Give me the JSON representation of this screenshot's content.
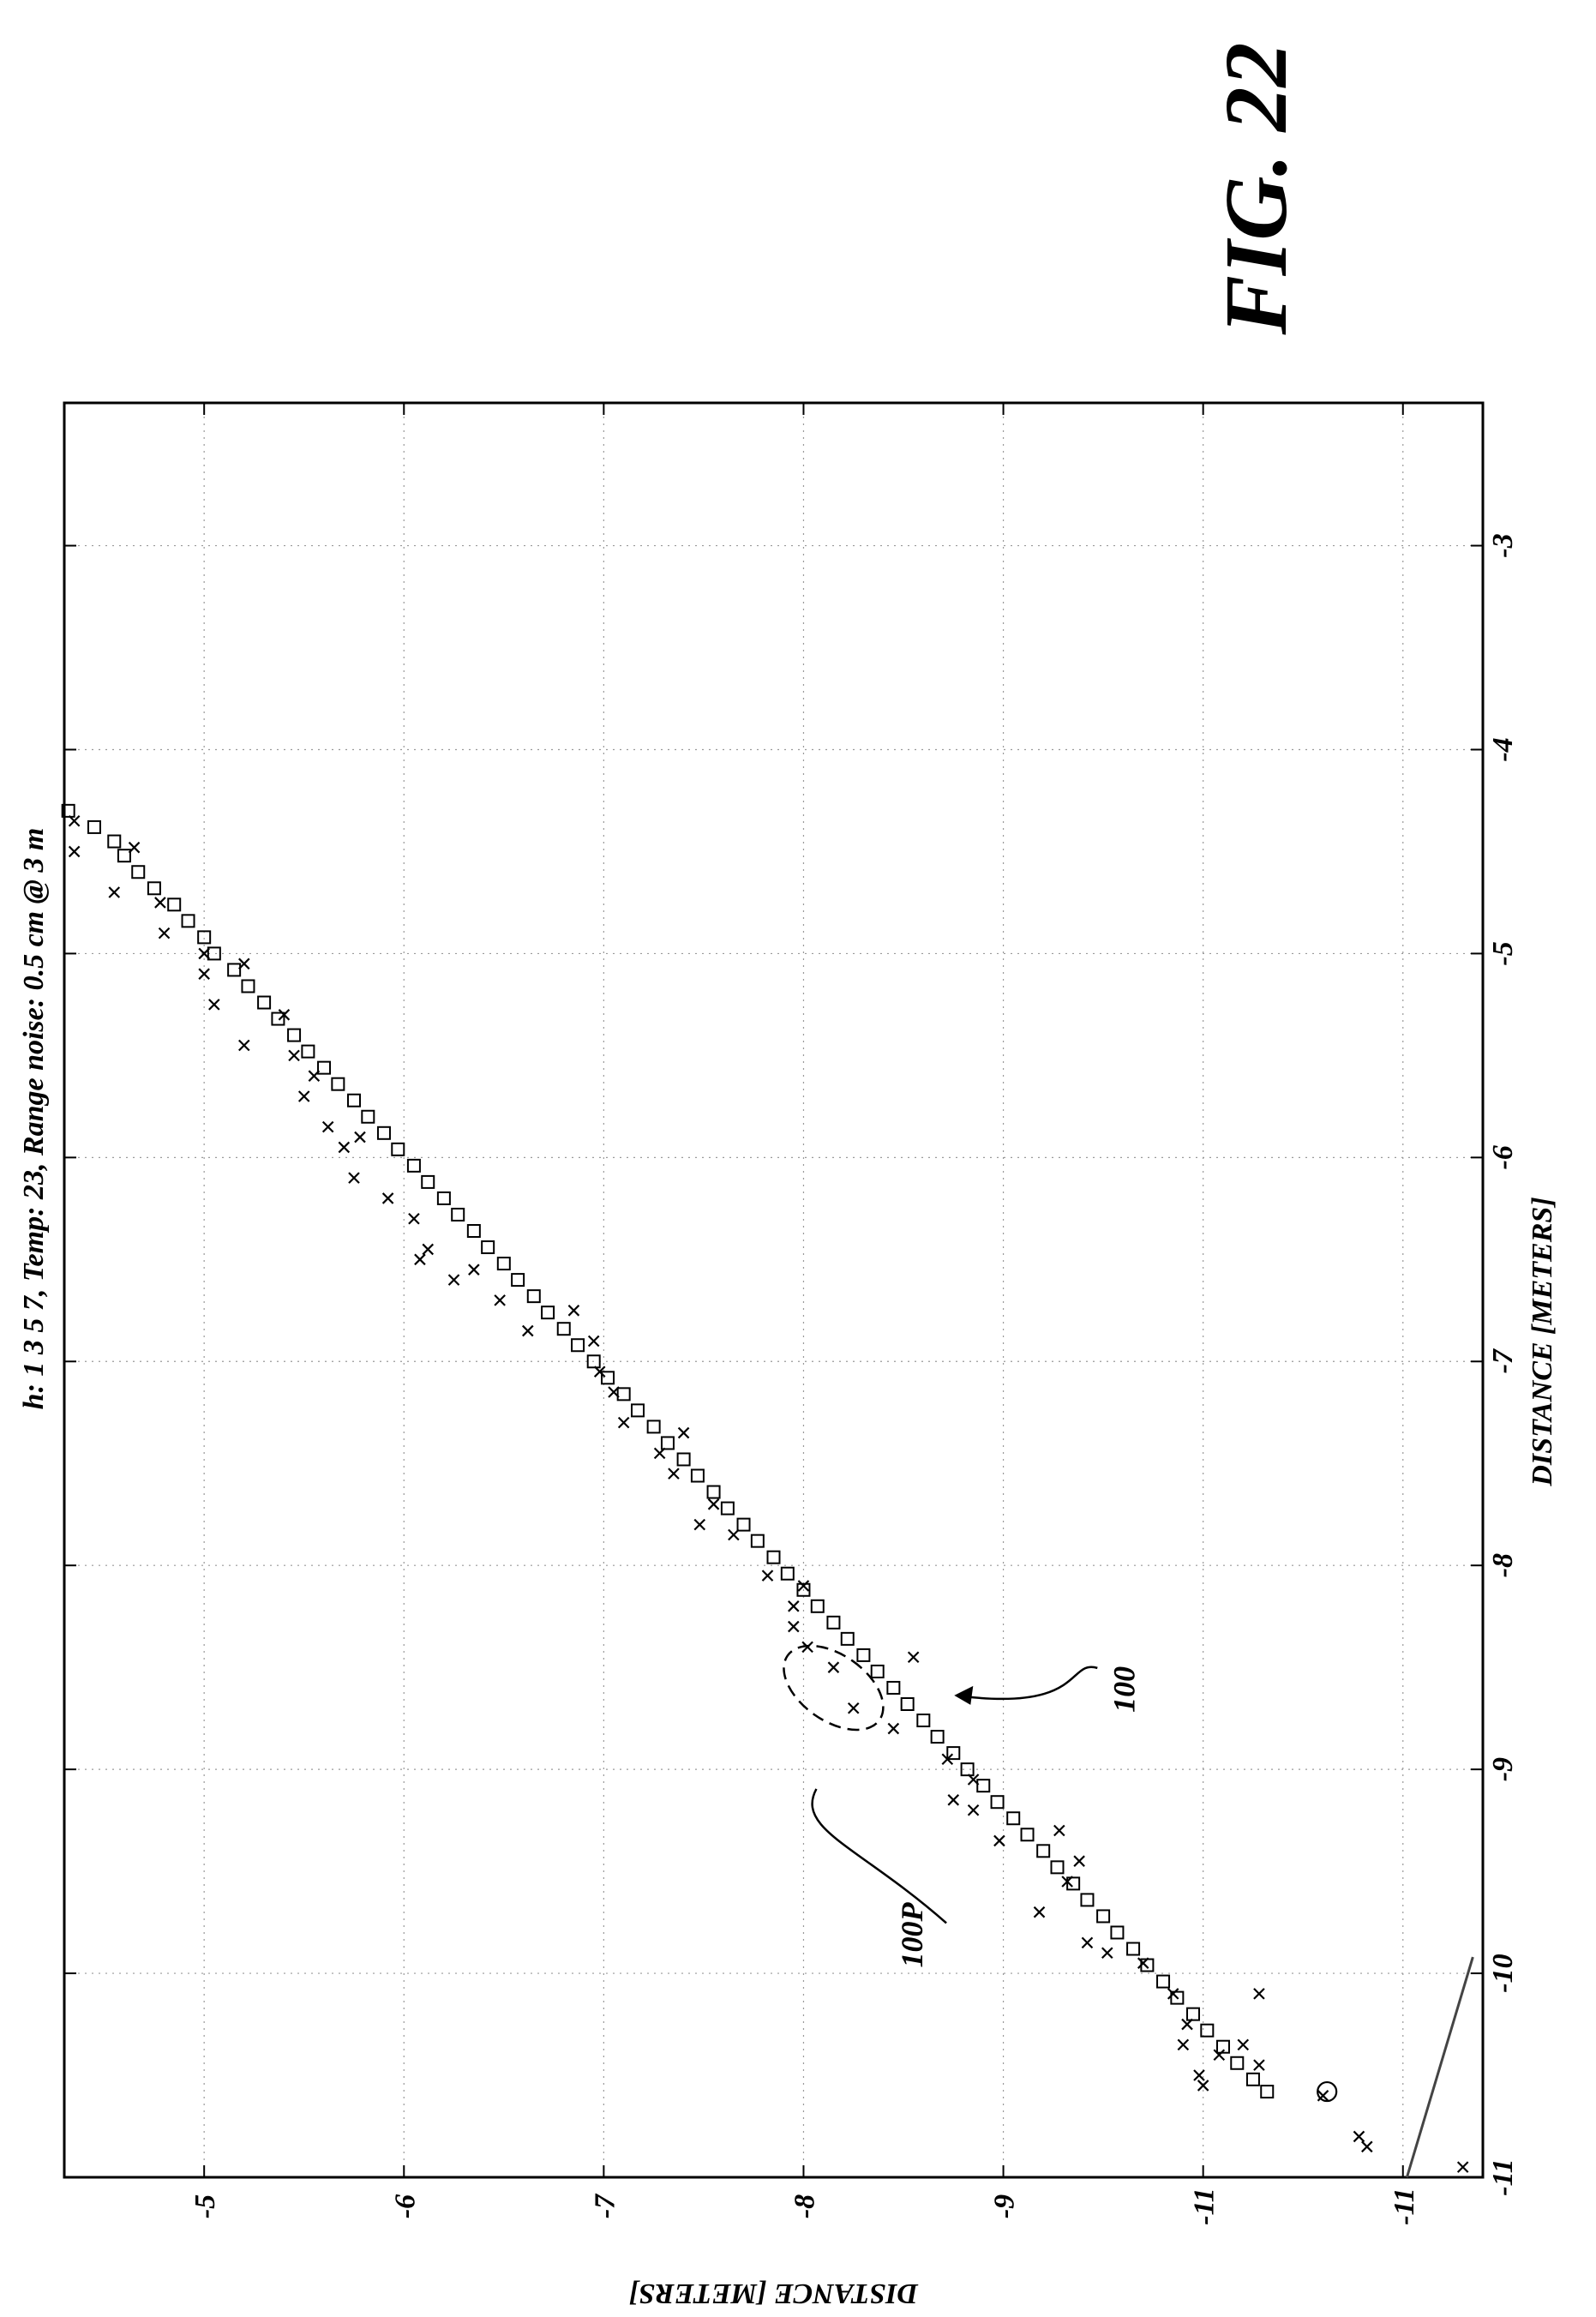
{
  "figure_label": "FIG. 22",
  "chart_data": {
    "type": "scatter",
    "title": "h: 1 3 5 7, Temp: 23, Range noise: 0.5 cm @ 3 m",
    "xlabel": "DISTANCE [METERS]",
    "ylabel": "DISTANCE [METERS]",
    "xlim": [
      -11,
      -2.3
    ],
    "ylim": [
      -4.3,
      -11.4
    ],
    "x_ticks": [
      "-11",
      "-10",
      "-9",
      "-8",
      "-7",
      "-6",
      "-5",
      "-4",
      "-3"
    ],
    "y_ticks": [
      "-5",
      "-6",
      "-7",
      "-8",
      "-9",
      "-11",
      "-11"
    ],
    "grid": true,
    "annotations": [
      {
        "label": "100",
        "target": [
          -8.65,
          -8.72
        ]
      },
      {
        "label": "100P",
        "target": [
          -8.85,
          -8.2
        ]
      }
    ],
    "ellipse": {
      "center": [
        -8.6,
        -8.15
      ],
      "span_x": 0.55,
      "span_y": 0.33
    },
    "circle_marker": {
      "x": -10.58,
      "y": -10.62
    },
    "solid_line": {
      "points": [
        [
          -11.0,
          -11.02
        ],
        [
          -9.92,
          -11.35
        ]
      ]
    },
    "series": [
      {
        "marker": "square",
        "points": [
          [
            -4.3,
            -4.32
          ],
          [
            -4.38,
            -4.45
          ],
          [
            -4.45,
            -4.55
          ],
          [
            -4.52,
            -4.6
          ],
          [
            -4.6,
            -4.67
          ],
          [
            -4.68,
            -4.75
          ],
          [
            -4.76,
            -4.85
          ],
          [
            -4.84,
            -4.92
          ],
          [
            -4.92,
            -5.0
          ],
          [
            -5.0,
            -5.05
          ],
          [
            -5.08,
            -5.15
          ],
          [
            -5.16,
            -5.22
          ],
          [
            -5.24,
            -5.3
          ],
          [
            -5.32,
            -5.37
          ],
          [
            -5.4,
            -5.45
          ],
          [
            -5.48,
            -5.52
          ],
          [
            -5.56,
            -5.6
          ],
          [
            -5.64,
            -5.67
          ],
          [
            -5.72,
            -5.75
          ],
          [
            -5.8,
            -5.82
          ],
          [
            -5.88,
            -5.9
          ],
          [
            -5.96,
            -5.97
          ],
          [
            -6.04,
            -6.05
          ],
          [
            -6.12,
            -6.12
          ],
          [
            -6.2,
            -6.2
          ],
          [
            -6.28,
            -6.27
          ],
          [
            -6.36,
            -6.35
          ],
          [
            -6.44,
            -6.42
          ],
          [
            -6.52,
            -6.5
          ],
          [
            -6.6,
            -6.57
          ],
          [
            -6.68,
            -6.65
          ],
          [
            -6.76,
            -6.72
          ],
          [
            -6.84,
            -6.8
          ],
          [
            -6.92,
            -6.87
          ],
          [
            -7.0,
            -6.95
          ],
          [
            -7.08,
            -7.02
          ],
          [
            -7.16,
            -7.1
          ],
          [
            -7.24,
            -7.17
          ],
          [
            -7.32,
            -7.25
          ],
          [
            -7.4,
            -7.32
          ],
          [
            -7.48,
            -7.4
          ],
          [
            -7.56,
            -7.47
          ],
          [
            -7.64,
            -7.55
          ],
          [
            -7.72,
            -7.62
          ],
          [
            -7.8,
            -7.7
          ],
          [
            -7.88,
            -7.77
          ],
          [
            -7.96,
            -7.85
          ],
          [
            -8.04,
            -7.92
          ],
          [
            -8.12,
            -8.0
          ],
          [
            -8.2,
            -8.07
          ],
          [
            -8.28,
            -8.15
          ],
          [
            -8.36,
            -8.22
          ],
          [
            -8.44,
            -8.3
          ],
          [
            -8.52,
            -8.37
          ],
          [
            -8.6,
            -8.45
          ],
          [
            -8.68,
            -8.52
          ],
          [
            -8.76,
            -8.6
          ],
          [
            -8.84,
            -8.67
          ],
          [
            -8.92,
            -8.75
          ],
          [
            -9.0,
            -8.82
          ],
          [
            -9.08,
            -8.9
          ],
          [
            -9.16,
            -8.97
          ],
          [
            -9.24,
            -9.05
          ],
          [
            -9.32,
            -9.12
          ],
          [
            -9.4,
            -9.2
          ],
          [
            -9.48,
            -9.27
          ],
          [
            -9.56,
            -9.35
          ],
          [
            -9.64,
            -9.42
          ],
          [
            -9.72,
            -9.5
          ],
          [
            -9.8,
            -9.57
          ],
          [
            -9.88,
            -9.65
          ],
          [
            -9.96,
            -9.72
          ],
          [
            -10.04,
            -9.8
          ],
          [
            -10.12,
            -9.87
          ],
          [
            -10.2,
            -9.95
          ],
          [
            -10.28,
            -10.02
          ],
          [
            -10.36,
            -10.1
          ],
          [
            -10.44,
            -10.17
          ],
          [
            -10.52,
            -10.25
          ],
          [
            -10.58,
            -10.32
          ]
        ]
      },
      {
        "marker": "x",
        "points": [
          [
            -4.35,
            -4.35
          ],
          [
            -4.5,
            -4.35
          ],
          [
            -4.48,
            -4.65
          ],
          [
            -4.7,
            -4.55
          ],
          [
            -4.75,
            -4.78
          ],
          [
            -4.9,
            -4.8
          ],
          [
            -5.0,
            -5.0
          ],
          [
            -5.05,
            -5.2
          ],
          [
            -5.1,
            -5.0
          ],
          [
            -5.25,
            -5.05
          ],
          [
            -5.3,
            -5.4
          ],
          [
            -5.45,
            -5.2
          ],
          [
            -5.5,
            -5.45
          ],
          [
            -5.6,
            -5.55
          ],
          [
            -5.7,
            -5.5
          ],
          [
            -5.85,
            -5.62
          ],
          [
            -5.9,
            -5.78
          ],
          [
            -5.95,
            -5.7
          ],
          [
            -6.1,
            -5.75
          ],
          [
            -6.2,
            -5.92
          ],
          [
            -6.3,
            -6.05
          ],
          [
            -6.45,
            -6.12
          ],
          [
            -6.5,
            -6.08
          ],
          [
            -6.55,
            -6.35
          ],
          [
            -6.6,
            -6.25
          ],
          [
            -6.7,
            -6.48
          ],
          [
            -6.85,
            -6.62
          ],
          [
            -6.75,
            -6.85
          ],
          [
            -6.9,
            -6.95
          ],
          [
            -7.05,
            -6.98
          ],
          [
            -7.15,
            -7.05
          ],
          [
            -7.3,
            -7.1
          ],
          [
            -7.35,
            -7.4
          ],
          [
            -7.45,
            -7.28
          ],
          [
            -7.55,
            -7.35
          ],
          [
            -7.7,
            -7.55
          ],
          [
            -7.8,
            -7.48
          ],
          [
            -7.85,
            -7.65
          ],
          [
            -8.05,
            -7.82
          ],
          [
            -8.1,
            -8.0
          ],
          [
            -8.2,
            -7.95
          ],
          [
            -8.3,
            -7.95
          ],
          [
            -8.4,
            -8.02
          ],
          [
            -8.5,
            -8.15
          ],
          [
            -8.7,
            -8.25
          ],
          [
            -8.8,
            -8.45
          ],
          [
            -8.45,
            -8.55
          ],
          [
            -8.95,
            -8.72
          ],
          [
            -9.05,
            -8.85
          ],
          [
            -9.15,
            -8.75
          ],
          [
            -9.2,
            -8.85
          ],
          [
            -9.35,
            -8.98
          ],
          [
            -9.3,
            -9.28
          ],
          [
            -9.45,
            -9.38
          ],
          [
            -9.55,
            -9.32
          ],
          [
            -9.7,
            -9.18
          ],
          [
            -9.85,
            -9.42
          ],
          [
            -9.9,
            -9.52
          ],
          [
            -9.95,
            -9.7
          ],
          [
            -10.1,
            -9.85
          ],
          [
            -10.25,
            -9.92
          ],
          [
            -10.35,
            -9.9
          ],
          [
            -10.5,
            -9.98
          ],
          [
            -10.4,
            -10.08
          ],
          [
            -10.45,
            -10.28
          ],
          [
            -10.35,
            -10.2
          ],
          [
            -10.1,
            -10.28
          ],
          [
            -10.55,
            -10.0
          ],
          [
            -10.6,
            -10.6
          ],
          [
            -10.8,
            -10.78
          ],
          [
            -10.85,
            -10.82
          ],
          [
            -10.95,
            -11.3
          ]
        ]
      }
    ]
  }
}
